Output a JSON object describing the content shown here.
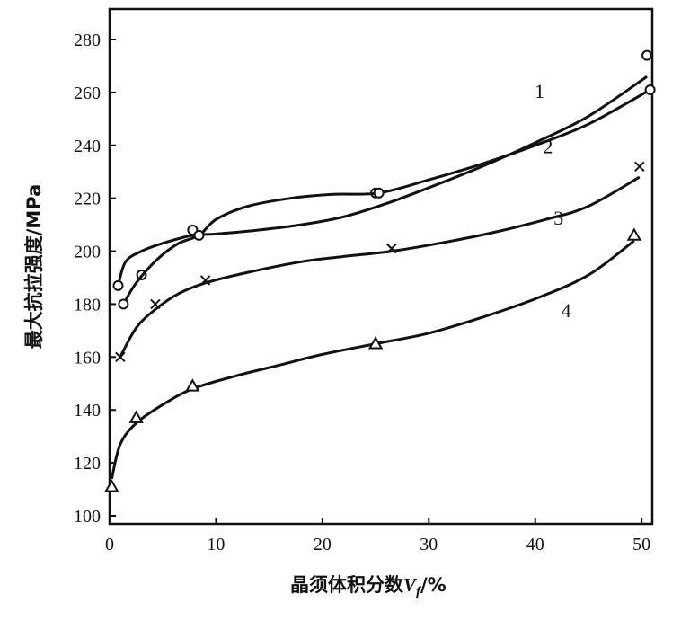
{
  "chart_data": {
    "type": "line",
    "title": "",
    "xlabel": "晶须体积分数",
    "xlabel_symbol": "V",
    "xlabel_subscript": "f",
    "xlabel_suffix": "/%",
    "ylabel": "最大抗拉强度/MPa",
    "xlim": [
      0,
      51
    ],
    "ylim": [
      100,
      290
    ],
    "x_ticks": [
      0,
      10,
      20,
      30,
      40,
      50
    ],
    "y_ticks": [
      100,
      120,
      140,
      160,
      180,
      200,
      220,
      240,
      260,
      280
    ],
    "grid": false,
    "series": [
      {
        "name": "1",
        "marker": "circle",
        "points": [
          [
            0.8,
            187
          ],
          [
            3.0,
            191
          ],
          [
            7.8,
            208
          ],
          [
            25.0,
            222
          ],
          [
            50.5,
            274
          ]
        ],
        "curve": [
          [
            0.8,
            187
          ],
          [
            1.5,
            196
          ],
          [
            3,
            200
          ],
          [
            5,
            203
          ],
          [
            7.8,
            206
          ],
          [
            10,
            206.5
          ],
          [
            14,
            208
          ],
          [
            18,
            210
          ],
          [
            22,
            213
          ],
          [
            26,
            218
          ],
          [
            30,
            224
          ],
          [
            35,
            232
          ],
          [
            40,
            241
          ],
          [
            45,
            251
          ],
          [
            50.5,
            266
          ]
        ]
      },
      {
        "name": "2",
        "marker": "circle",
        "points": [
          [
            1.3,
            180
          ],
          [
            8.4,
            206
          ],
          [
            25.3,
            222
          ],
          [
            50.8,
            261
          ]
        ],
        "curve": [
          [
            1.3,
            180
          ],
          [
            2.5,
            188
          ],
          [
            4.5,
            197
          ],
          [
            6.5,
            203
          ],
          [
            8.4,
            206
          ],
          [
            10,
            212
          ],
          [
            13,
            217
          ],
          [
            17,
            220
          ],
          [
            21,
            221.5
          ],
          [
            25.3,
            222
          ],
          [
            30,
            227
          ],
          [
            35,
            233
          ],
          [
            40,
            240
          ],
          [
            45,
            248
          ],
          [
            50.8,
            261
          ]
        ]
      },
      {
        "name": "3",
        "marker": "x",
        "points": [
          [
            1.0,
            160
          ],
          [
            4.3,
            180
          ],
          [
            9.0,
            189
          ],
          [
            26.5,
            201
          ],
          [
            49.8,
            232
          ]
        ],
        "curve": [
          [
            1.0,
            160
          ],
          [
            2.5,
            171
          ],
          [
            4.3,
            178
          ],
          [
            6.5,
            184
          ],
          [
            9.0,
            188
          ],
          [
            13,
            192
          ],
          [
            18,
            196
          ],
          [
            22,
            198
          ],
          [
            26.5,
            200
          ],
          [
            31,
            203
          ],
          [
            36,
            207
          ],
          [
            41,
            212
          ],
          [
            45,
            217
          ],
          [
            49.8,
            228
          ]
        ]
      },
      {
        "name": "4",
        "marker": "triangle",
        "points": [
          [
            0.2,
            111
          ],
          [
            2.5,
            137
          ],
          [
            7.8,
            149
          ],
          [
            25.0,
            165
          ],
          [
            49.3,
            206
          ]
        ],
        "curve": [
          [
            0.2,
            114
          ],
          [
            1,
            127
          ],
          [
            2.5,
            135
          ],
          [
            5,
            142
          ],
          [
            7.8,
            148
          ],
          [
            12,
            153
          ],
          [
            16,
            157
          ],
          [
            20,
            161
          ],
          [
            25,
            165
          ],
          [
            30,
            169
          ],
          [
            35,
            175
          ],
          [
            40,
            182
          ],
          [
            45,
            191
          ],
          [
            49.3,
            204
          ]
        ]
      }
    ],
    "curve_labels": [
      {
        "series": "1",
        "text": "1",
        "x": 40.4,
        "y": 258
      },
      {
        "series": "2",
        "text": "2",
        "x": 41.2,
        "y": 237
      },
      {
        "series": "3",
        "text": "3",
        "x": 42.2,
        "y": 210
      },
      {
        "series": "4",
        "text": "4",
        "x": 42.9,
        "y": 175
      }
    ]
  }
}
